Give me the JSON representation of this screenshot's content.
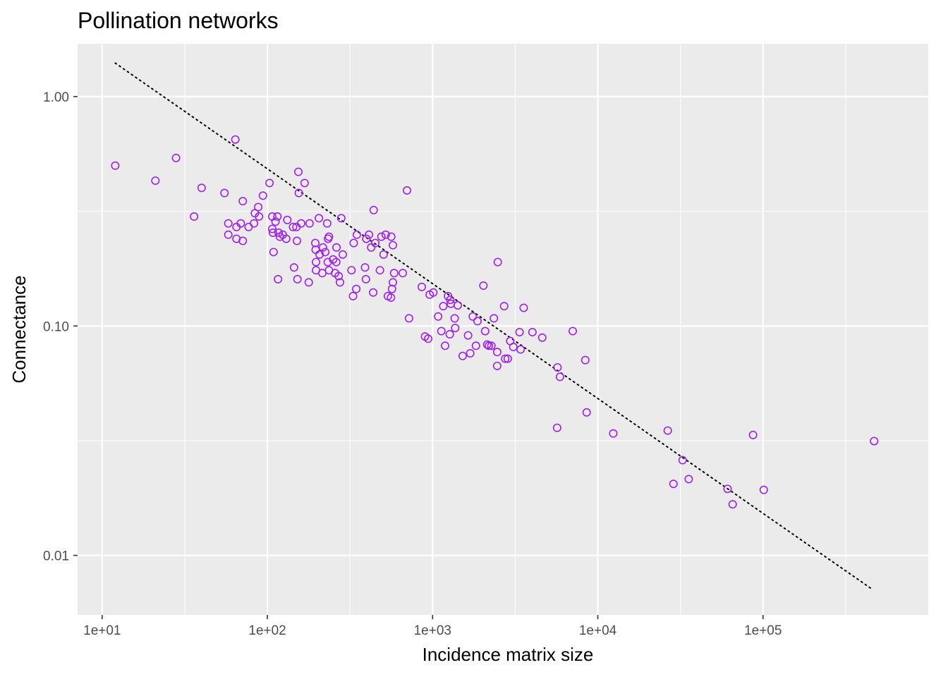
{
  "chart_data": {
    "type": "scatter",
    "title": "Pollination networks",
    "xlabel": "Incidence matrix size",
    "ylabel": "Connectance",
    "x_scale": "log10",
    "y_scale": "log10",
    "xlim": [
      7.1,
      1000000
    ],
    "ylim": [
      0.0055,
      1.7
    ],
    "x_ticks": [
      10,
      100,
      1000,
      10000,
      100000
    ],
    "x_tick_labels": [
      "1e+01",
      "1e+02",
      "1e+03",
      "1e+04",
      "1e+05"
    ],
    "y_ticks": [
      0.01,
      0.1,
      1
    ],
    "y_tick_labels": [
      "0.01",
      "0.10",
      "1.00"
    ],
    "grid": true,
    "colors": {
      "panel_background": "#ebebeb",
      "grid_line": "#ffffff",
      "point_stroke": "#a020f0",
      "trend_line": "#000000",
      "tick_mark": "#333333"
    },
    "trend_line": {
      "style": "dotted",
      "points": [
        [
          12,
          1.4
        ],
        [
          460000,
          0.0071
        ]
      ]
    },
    "points": [
      [
        12,
        0.5
      ],
      [
        21,
        0.43
      ],
      [
        28,
        0.54
      ],
      [
        36,
        0.3
      ],
      [
        40,
        0.4
      ],
      [
        55,
        0.38
      ],
      [
        58,
        0.28
      ],
      [
        58,
        0.25
      ],
      [
        64,
        0.65
      ],
      [
        65,
        0.27
      ],
      [
        65,
        0.24
      ],
      [
        69,
        0.28
      ],
      [
        71,
        0.35
      ],
      [
        71,
        0.235
      ],
      [
        77,
        0.27
      ],
      [
        83,
        0.28
      ],
      [
        84,
        0.31
      ],
      [
        88,
        0.33
      ],
      [
        89,
        0.3
      ],
      [
        94,
        0.37
      ],
      [
        103,
        0.42
      ],
      [
        107,
        0.3
      ],
      [
        107,
        0.265
      ],
      [
        108,
        0.255
      ],
      [
        109,
        0.21
      ],
      [
        112,
        0.285
      ],
      [
        115,
        0.3
      ],
      [
        116,
        0.16
      ],
      [
        117,
        0.255
      ],
      [
        119,
        0.245
      ],
      [
        124,
        0.25
      ],
      [
        130,
        0.24
      ],
      [
        132,
        0.29
      ],
      [
        143,
        0.27
      ],
      [
        145,
        0.18
      ],
      [
        150,
        0.27
      ],
      [
        151,
        0.235
      ],
      [
        152,
        0.16
      ],
      [
        154,
        0.47
      ],
      [
        155,
        0.38
      ],
      [
        160,
        0.28
      ],
      [
        168,
        0.42
      ],
      [
        178,
        0.155
      ],
      [
        180,
        0.28
      ],
      [
        195,
        0.23
      ],
      [
        196,
        0.215
      ],
      [
        197,
        0.19
      ],
      [
        197,
        0.175
      ],
      [
        205,
        0.295
      ],
      [
        207,
        0.205
      ],
      [
        215,
        0.17
      ],
      [
        217,
        0.22
      ],
      [
        224,
        0.21
      ],
      [
        230,
        0.28
      ],
      [
        232,
        0.19
      ],
      [
        233,
        0.24
      ],
      [
        236,
        0.175
      ],
      [
        236,
        0.245
      ],
      [
        250,
        0.195
      ],
      [
        257,
        0.17
      ],
      [
        261,
        0.19
      ],
      [
        262,
        0.22
      ],
      [
        270,
        0.165
      ],
      [
        275,
        0.155
      ],
      [
        280,
        0.295
      ],
      [
        286,
        0.205
      ],
      [
        323,
        0.175
      ],
      [
        330,
        0.135
      ],
      [
        333,
        0.23
      ],
      [
        345,
        0.145
      ],
      [
        348,
        0.25
      ],
      [
        390,
        0.18
      ],
      [
        395,
        0.16
      ],
      [
        397,
        0.24
      ],
      [
        412,
        0.25
      ],
      [
        425,
        0.22
      ],
      [
        437,
        0.14
      ],
      [
        440,
        0.32
      ],
      [
        450,
        0.23
      ],
      [
        480,
        0.175
      ],
      [
        490,
        0.245
      ],
      [
        505,
        0.205
      ],
      [
        520,
        0.25
      ],
      [
        536,
        0.135
      ],
      [
        560,
        0.133
      ],
      [
        562,
        0.245
      ],
      [
        568,
        0.145
      ],
      [
        575,
        0.225
      ],
      [
        575,
        0.155
      ],
      [
        585,
        0.17
      ],
      [
        660,
        0.17
      ],
      [
        700,
        0.39
      ],
      [
        720,
        0.108
      ],
      [
        860,
        0.148
      ],
      [
        900,
        0.09
      ],
      [
        940,
        0.088
      ],
      [
        960,
        0.137
      ],
      [
        1010,
        0.14
      ],
      [
        1080,
        0.11
      ],
      [
        1130,
        0.095
      ],
      [
        1160,
        0.122
      ],
      [
        1190,
        0.082
      ],
      [
        1240,
        0.135
      ],
      [
        1270,
        0.092
      ],
      [
        1280,
        0.13
      ],
      [
        1290,
        0.125
      ],
      [
        1360,
        0.108
      ],
      [
        1370,
        0.098
      ],
      [
        1420,
        0.123
      ],
      [
        1520,
        0.074
      ],
      [
        1640,
        0.091
      ],
      [
        1690,
        0.076
      ],
      [
        1750,
        0.11
      ],
      [
        1830,
        0.082
      ],
      [
        1870,
        0.105
      ],
      [
        2030,
        0.15
      ],
      [
        2080,
        0.095
      ],
      [
        2140,
        0.083
      ],
      [
        2190,
        0.082
      ],
      [
        2270,
        0.082
      ],
      [
        2350,
        0.108
      ],
      [
        2460,
        0.077
      ],
      [
        2460,
        0.067
      ],
      [
        2480,
        0.19
      ],
      [
        2710,
        0.122
      ],
      [
        2750,
        0.072
      ],
      [
        2850,
        0.072
      ],
      [
        2950,
        0.086
      ],
      [
        3080,
        0.081
      ],
      [
        3360,
        0.094
      ],
      [
        3410,
        0.079
      ],
      [
        3560,
        0.12
      ],
      [
        4020,
        0.094
      ],
      [
        4610,
        0.089
      ],
      [
        5670,
        0.036
      ],
      [
        5700,
        0.066
      ],
      [
        5900,
        0.06
      ],
      [
        7050,
        0.095
      ],
      [
        8400,
        0.071
      ],
      [
        8560,
        0.042
      ],
      [
        12400,
        0.034
      ],
      [
        26500,
        0.035
      ],
      [
        28700,
        0.0205
      ],
      [
        32600,
        0.026
      ],
      [
        35500,
        0.0215
      ],
      [
        61000,
        0.0195
      ],
      [
        65500,
        0.0167
      ],
      [
        87000,
        0.0335
      ],
      [
        101000,
        0.0193
      ],
      [
        470000,
        0.0315
      ]
    ]
  }
}
